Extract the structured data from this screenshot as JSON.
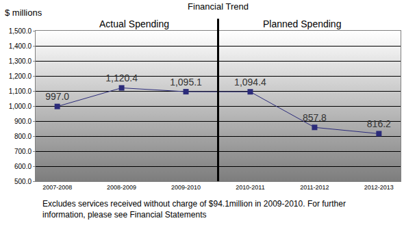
{
  "chart_data": {
    "type": "line",
    "title": "Financial Trend",
    "y_label": "$ millions",
    "categories": [
      "2007-2008",
      "2008-2009",
      "2009-2010",
      "2010-2011",
      "2011-2012",
      "2012-2013"
    ],
    "values": [
      997.0,
      1120.4,
      1095.1,
      1094.4,
      857.8,
      816.2
    ],
    "value_labels": [
      "997.0",
      "1,120.4",
      "1,095.1",
      "1,094.4",
      "857.8",
      "816.2"
    ],
    "color": "#2b2b7a",
    "marker": "square",
    "data_labels": true,
    "grid": true,
    "ylim": [
      500,
      1500
    ],
    "yticks": [
      {
        "value": 500,
        "label": "500.0"
      },
      {
        "value": 600,
        "label": "600.0"
      },
      {
        "value": 700,
        "label": "700.0"
      },
      {
        "value": 800,
        "label": "800.0"
      },
      {
        "value": 900,
        "label": "900.0"
      },
      {
        "value": 1000,
        "label": "1,000.0"
      },
      {
        "value": 1100,
        "label": "1,100.0"
      },
      {
        "value": 1200,
        "label": "1,200.0"
      },
      {
        "value": 1300,
        "label": "1,300.0"
      },
      {
        "value": 1400,
        "label": "1,400.0"
      },
      {
        "value": 1500,
        "label": "1,500.0"
      }
    ],
    "annotations": [
      "Actual Spending",
      "Planned Spending"
    ],
    "footnote": [
      "Excludes services received without charge of $94.1million in 2009-2010. For further",
      "information, please see Financial Statements"
    ]
  }
}
